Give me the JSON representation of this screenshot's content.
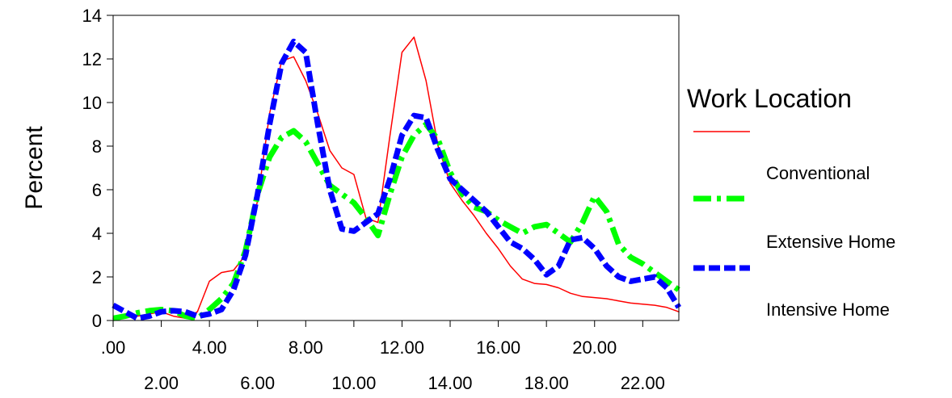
{
  "chart_data": {
    "type": "line",
    "title": "",
    "xlabel": "",
    "ylabel": "Percent",
    "xlim": [
      0,
      23.5
    ],
    "ylim": [
      0,
      14
    ],
    "y_ticks": [
      "0",
      "2",
      "4",
      "6",
      "8",
      "10",
      "12",
      "14"
    ],
    "y_tick_values": [
      0,
      2,
      4,
      6,
      8,
      10,
      12,
      14
    ],
    "x_ticks_upper": [
      ".00",
      "4.00",
      "8.00",
      "12.00",
      "16.00",
      "20.00"
    ],
    "x_ticks_upper_values": [
      0,
      4,
      8,
      12,
      16,
      20
    ],
    "x_ticks_lower": [
      "2.00",
      "6.00",
      "10.00",
      "14.00",
      "18.00",
      "22.00"
    ],
    "x_ticks_lower_values": [
      2,
      6,
      10,
      14,
      18,
      22
    ],
    "grid": false,
    "legend": {
      "title": "Work Location",
      "placement": "right"
    },
    "series": [
      {
        "name": "Conventional",
        "color": "#ff0000",
        "style": "solid-thin",
        "x": [
          0.0,
          0.5,
          1.0,
          1.5,
          2.0,
          2.5,
          3.0,
          3.5,
          4.0,
          4.5,
          5.0,
          5.5,
          6.0,
          6.5,
          7.0,
          7.5,
          8.0,
          8.5,
          9.0,
          9.5,
          10.0,
          10.5,
          11.0,
          11.5,
          12.0,
          12.5,
          13.0,
          13.5,
          14.0,
          14.5,
          15.0,
          15.5,
          16.0,
          16.5,
          17.0,
          17.5,
          18.0,
          18.5,
          19.0,
          19.5,
          20.0,
          20.5,
          21.0,
          21.5,
          22.0,
          22.5,
          23.0,
          23.5
        ],
        "values": [
          0.1,
          0.15,
          0.2,
          0.3,
          0.4,
          0.2,
          0.1,
          0.4,
          1.8,
          2.2,
          2.3,
          3.0,
          5.5,
          9.5,
          11.9,
          12.1,
          11.0,
          9.5,
          7.8,
          7.0,
          6.7,
          4.7,
          4.5,
          8.5,
          12.3,
          13.0,
          11.0,
          8.0,
          6.3,
          5.5,
          4.8,
          4.0,
          3.3,
          2.5,
          1.9,
          1.7,
          1.65,
          1.5,
          1.25,
          1.1,
          1.05,
          1.0,
          0.9,
          0.8,
          0.75,
          0.7,
          0.6,
          0.4
        ]
      },
      {
        "name": "Extensive Home",
        "color": "#00ff00",
        "style": "dash-dot-thick",
        "x": [
          0.0,
          0.5,
          1.0,
          1.5,
          2.0,
          2.5,
          3.0,
          3.5,
          4.0,
          4.5,
          5.0,
          5.5,
          6.0,
          6.5,
          7.0,
          7.5,
          8.0,
          8.5,
          9.0,
          9.5,
          10.0,
          10.5,
          11.0,
          11.5,
          12.0,
          12.5,
          13.0,
          13.5,
          14.0,
          14.5,
          15.0,
          15.5,
          16.0,
          16.5,
          17.0,
          17.5,
          18.0,
          18.5,
          19.0,
          19.5,
          20.0,
          20.5,
          21.0,
          21.5,
          22.0,
          22.5,
          23.0,
          23.5
        ],
        "values": [
          0.1,
          0.2,
          0.35,
          0.45,
          0.5,
          0.45,
          0.2,
          0.1,
          0.5,
          1.0,
          1.7,
          3.2,
          5.8,
          7.5,
          8.4,
          8.7,
          8.2,
          7.2,
          6.2,
          5.8,
          5.4,
          4.7,
          3.9,
          5.8,
          7.5,
          8.5,
          9.0,
          8.3,
          6.8,
          5.8,
          5.2,
          5.0,
          4.6,
          4.3,
          4.0,
          4.3,
          4.4,
          4.0,
          3.6,
          4.5,
          5.7,
          5.0,
          3.5,
          2.9,
          2.6,
          2.2,
          1.8,
          1.4
        ]
      },
      {
        "name": "Intensive Home",
        "color": "#0000ff",
        "style": "dash-thick",
        "x": [
          0.0,
          0.5,
          1.0,
          1.5,
          2.0,
          2.5,
          3.0,
          3.5,
          4.0,
          4.5,
          5.0,
          5.5,
          6.0,
          6.5,
          7.0,
          7.5,
          8.0,
          8.5,
          9.0,
          9.5,
          10.0,
          10.5,
          11.0,
          11.5,
          12.0,
          12.5,
          13.0,
          13.5,
          14.0,
          14.5,
          15.0,
          15.5,
          16.0,
          16.5,
          17.0,
          17.5,
          18.0,
          18.5,
          19.0,
          19.5,
          20.0,
          20.5,
          21.0,
          21.5,
          22.0,
          22.5,
          23.0,
          23.5
        ],
        "values": [
          0.7,
          0.4,
          0.1,
          0.2,
          0.4,
          0.45,
          0.4,
          0.2,
          0.3,
          0.5,
          1.4,
          3.0,
          5.8,
          9.0,
          11.8,
          12.8,
          12.3,
          9.0,
          6.0,
          4.2,
          4.1,
          4.5,
          4.9,
          6.5,
          8.5,
          9.4,
          9.3,
          7.8,
          6.5,
          6.0,
          5.5,
          5.0,
          4.3,
          3.6,
          3.3,
          2.8,
          2.1,
          2.5,
          3.7,
          3.8,
          3.3,
          2.5,
          2.0,
          1.8,
          1.9,
          2.0,
          1.5,
          0.6
        ]
      }
    ]
  }
}
